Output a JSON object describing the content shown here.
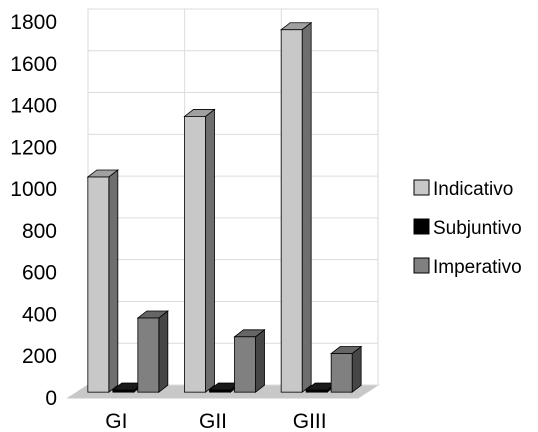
{
  "chart_data": {
    "type": "bar",
    "title": "",
    "xlabel": "",
    "ylabel": "",
    "categories": [
      "GI",
      "GII",
      "GIII"
    ],
    "series": [
      {
        "name": "Indicativo",
        "values": [
          1030,
          1320,
          1735
        ],
        "color": "#c8c8c8"
      },
      {
        "name": "Subjuntivo",
        "values": [
          10,
          10,
          10
        ],
        "color": "#000000"
      },
      {
        "name": "Imperativo",
        "values": [
          355,
          265,
          185
        ],
        "color": "#808080"
      }
    ],
    "ylim": [
      0,
      1800
    ],
    "yticks": [
      0,
      200,
      400,
      600,
      800,
      1000,
      1200,
      1400,
      1600,
      1800
    ],
    "grid": true,
    "legend": "right",
    "style": "3d"
  }
}
